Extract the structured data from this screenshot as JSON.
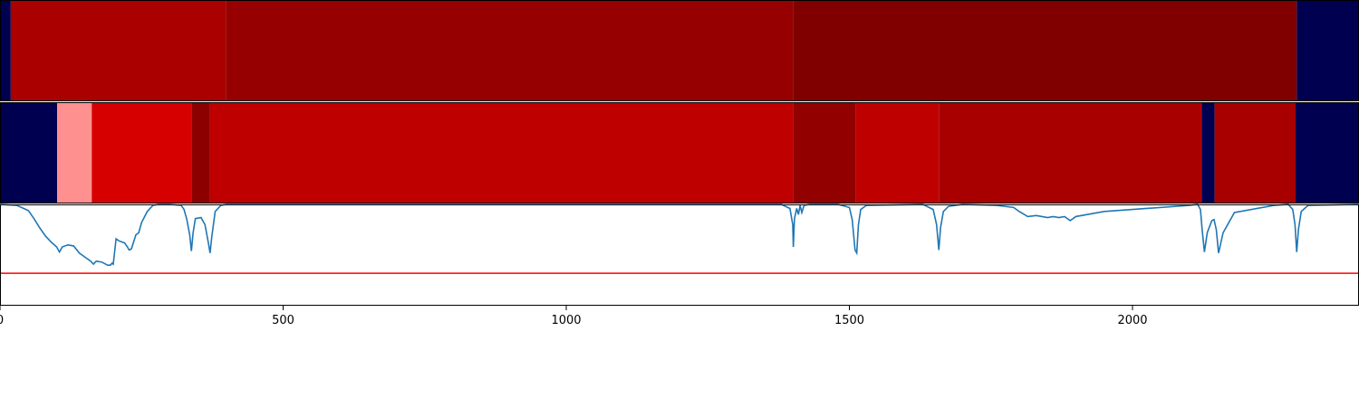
{
  "chart_data": {
    "type": "heatmap",
    "xlim": [
      0,
      2400
    ],
    "x_ticks": [
      {
        "value": 0,
        "label": "0"
      },
      {
        "value": 500,
        "label": "500"
      },
      {
        "value": 1000,
        "label": "1000"
      },
      {
        "value": 1500,
        "label": "1500"
      },
      {
        "value": 2000,
        "label": "2000"
      }
    ],
    "colors": {
      "background": "#000050",
      "threshold_line": "#ff0000",
      "signal_line": "#1f77b4"
    },
    "segment_tracks": [
      {
        "segments": [
          {
            "start": 0,
            "end": 19,
            "color": "#000050"
          },
          {
            "start": 19,
            "end": 399,
            "color": "#ab0000"
          },
          {
            "start": 399,
            "end": 1401,
            "color": "#960000"
          },
          {
            "start": 1401,
            "end": 2290,
            "color": "#800000"
          },
          {
            "start": 2290,
            "end": 2400,
            "color": "#000050"
          }
        ]
      },
      {
        "segments": [
          {
            "start": 0,
            "end": 101,
            "color": "#000050"
          },
          {
            "start": 101,
            "end": 162,
            "color": "#ff9090"
          },
          {
            "start": 162,
            "end": 338,
            "color": "#d60000"
          },
          {
            "start": 338,
            "end": 371,
            "color": "#8c0000"
          },
          {
            "start": 371,
            "end": 1401,
            "color": "#bf0000"
          },
          {
            "start": 1401,
            "end": 1511,
            "color": "#930000"
          },
          {
            "start": 1511,
            "end": 1658,
            "color": "#bf0000"
          },
          {
            "start": 1658,
            "end": 2122,
            "color": "#a80000"
          },
          {
            "start": 2122,
            "end": 2145,
            "color": "#000050"
          },
          {
            "start": 2145,
            "end": 2288,
            "color": "#a80000"
          },
          {
            "start": 2288,
            "end": 2400,
            "color": "#000050"
          }
        ]
      }
    ],
    "signal_panel": {
      "ylim": [
        0,
        1
      ],
      "threshold": 0.32,
      "series": [
        {
          "x": [
            0,
            30,
            50,
            60,
            70,
            80,
            90,
            100,
            105,
            110,
            120,
            130,
            140,
            150,
            160,
            165,
            170,
            180,
            190,
            195,
            198,
            200,
            205,
            210,
            220,
            225,
            228,
            232,
            240,
            245,
            250,
            260,
            270,
            280,
            300,
            320,
            325,
            330,
            335,
            338,
            341,
            345,
            355,
            362,
            368,
            371,
            374,
            380,
            390,
            400,
            1380,
            1395,
            1400,
            1401,
            1403,
            1407,
            1410,
            1413,
            1416,
            1420,
            1430,
            1480,
            1500,
            1505,
            1510,
            1513,
            1516,
            1520,
            1530,
            1630,
            1648,
            1654,
            1658,
            1661,
            1666,
            1675,
            1700,
            1760,
            1790,
            1800,
            1815,
            1830,
            1840,
            1850,
            1860,
            1870,
            1880,
            1890,
            1900,
            1950,
            2100,
            2115,
            2120,
            2123,
            2127,
            2132,
            2140,
            2144,
            2148,
            2152,
            2160,
            2180,
            2250,
            2275,
            2283,
            2287,
            2290,
            2293,
            2298,
            2310,
            2400
          ],
          "y": [
            1.0,
            0.99,
            0.94,
            0.86,
            0.77,
            0.69,
            0.63,
            0.58,
            0.53,
            0.58,
            0.6,
            0.59,
            0.52,
            0.48,
            0.44,
            0.41,
            0.44,
            0.43,
            0.4,
            0.4,
            0.42,
            0.41,
            0.66,
            0.64,
            0.62,
            0.58,
            0.55,
            0.56,
            0.7,
            0.72,
            0.82,
            0.93,
            0.99,
            1.0,
            1.0,
            0.99,
            0.95,
            0.85,
            0.7,
            0.54,
            0.72,
            0.86,
            0.87,
            0.8,
            0.62,
            0.52,
            0.68,
            0.93,
            0.99,
            1.0,
            1.0,
            0.96,
            0.8,
            0.58,
            0.86,
            0.96,
            0.9,
            0.99,
            0.92,
            0.99,
            1.0,
            1.0,
            0.97,
            0.85,
            0.55,
            0.52,
            0.8,
            0.95,
            0.99,
            1.0,
            0.95,
            0.8,
            0.55,
            0.77,
            0.93,
            0.98,
            1.0,
            0.99,
            0.97,
            0.93,
            0.88,
            0.89,
            0.88,
            0.87,
            0.88,
            0.87,
            0.88,
            0.84,
            0.88,
            0.93,
            0.99,
            1.0,
            0.95,
            0.75,
            0.53,
            0.72,
            0.84,
            0.85,
            0.75,
            0.52,
            0.72,
            0.92,
            0.99,
            1.0,
            0.95,
            0.8,
            0.53,
            0.75,
            0.93,
            0.99,
            1.0
          ]
        }
      ]
    }
  }
}
